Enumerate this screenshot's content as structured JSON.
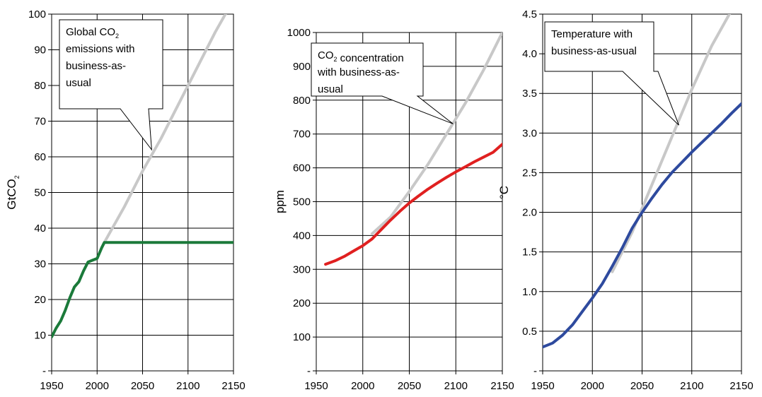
{
  "chart_data": [
    {
      "type": "line",
      "ylabel": "GtCO2",
      "ylabel_main": "GtCO",
      "ylabel_sub": "2",
      "xlim": [
        1950,
        2150
      ],
      "ylim": [
        0,
        100
      ],
      "x_ticks": [
        "1950",
        "2000",
        "2050",
        "2100",
        "2150"
      ],
      "y_ticks": [
        "-",
        "10",
        "20",
        "30",
        "40",
        "50",
        "60",
        "70",
        "80",
        "90",
        "100"
      ],
      "grid": true,
      "annotation": {
        "lines": [
          [
            {
              "t": "Global CO"
            },
            {
              "t": "2",
              "sub": true
            }
          ],
          [
            {
              "t": "emissions with"
            }
          ],
          [
            {
              "t": "business-as-"
            }
          ],
          [
            {
              "t": "usual"
            }
          ]
        ],
        "pointer_to": [
          2060,
          62
        ]
      },
      "series": [
        {
          "color": "#c8c8c8",
          "x": [
            2008,
            2030,
            2050,
            2070,
            2090,
            2110,
            2130,
            2150
          ],
          "y": [
            36,
            46,
            56,
            65,
            75,
            85,
            95,
            104
          ]
        },
        {
          "color": "#1b7a3a",
          "x": [
            1950,
            1955,
            1960,
            1965,
            1970,
            1975,
            1980,
            1985,
            1990,
            1995,
            2000,
            2005,
            2008,
            2010,
            2030,
            2050,
            2070,
            2090,
            2110,
            2130,
            2150
          ],
          "y": [
            9.5,
            12,
            14,
            17,
            20.5,
            23.5,
            25,
            28,
            30.5,
            31,
            31.5,
            34.5,
            36,
            36,
            36,
            36,
            36,
            36,
            36,
            36,
            36
          ]
        }
      ]
    },
    {
      "type": "line",
      "ylabel": "ppm",
      "ylabel_main": "ppm",
      "ylabel_sub": "",
      "xlim": [
        1950,
        2150
      ],
      "ylim": [
        0,
        1000
      ],
      "x_ticks": [
        "1950",
        "2000",
        "2050",
        "2100",
        "2150"
      ],
      "y_ticks": [
        "-",
        "100",
        "200",
        "300",
        "400",
        "500",
        "600",
        "700",
        "800",
        "900",
        "1000"
      ],
      "grid": true,
      "annotation": {
        "lines": [
          [
            {
              "t": "CO"
            },
            {
              "t": "2",
              "sub": true
            },
            {
              "t": " concentration"
            }
          ],
          [
            {
              "t": "with business-as-"
            }
          ],
          [
            {
              "t": "usual"
            }
          ]
        ],
        "pointer_to": [
          2097,
          730
        ]
      },
      "series": [
        {
          "color": "#c8c8c8",
          "x": [
            2010,
            2030,
            2050,
            2070,
            2090,
            2110,
            2130,
            2150
          ],
          "y": [
            405,
            455,
            530,
            610,
            700,
            790,
            890,
            1000
          ]
        },
        {
          "color": "#e02020",
          "x": [
            1960,
            1970,
            1980,
            1990,
            2000,
            2010,
            2020,
            2030,
            2040,
            2050,
            2060,
            2070,
            2080,
            2090,
            2100,
            2110,
            2120,
            2130,
            2140,
            2150
          ],
          "y": [
            315,
            325,
            338,
            354,
            370,
            390,
            418,
            446,
            472,
            496,
            517,
            537,
            555,
            572,
            588,
            603,
            618,
            632,
            646,
            670
          ]
        }
      ]
    },
    {
      "type": "line",
      "ylabel": "°C",
      "ylabel_main": "°C",
      "ylabel_sub": "",
      "xlim": [
        1950,
        2150
      ],
      "ylim": [
        0,
        4.5
      ],
      "x_ticks": [
        "1950",
        "2000",
        "2050",
        "2100",
        "2150"
      ],
      "y_ticks": [
        "-",
        "0.5",
        "1.0",
        "1.5",
        "2.0",
        "2.5",
        "3.0",
        "3.5",
        "4.0",
        "4.5"
      ],
      "grid": true,
      "annotation": {
        "lines": [
          [
            {
              "t": "Temperature with"
            }
          ],
          [
            {
              "t": "business-as-usual"
            }
          ]
        ],
        "pointer_to": [
          2087,
          3.1
        ]
      },
      "series": [
        {
          "color": "#c8c8c8",
          "x": [
            2020,
            2040,
            2060,
            2080,
            2100,
            2120,
            2140,
            2150
          ],
          "y": [
            1.25,
            1.75,
            2.35,
            2.95,
            3.55,
            4.1,
            4.55,
            4.75
          ]
        },
        {
          "color": "#2e4a9e",
          "x": [
            1950,
            1960,
            1970,
            1980,
            1990,
            2000,
            2010,
            2020,
            2030,
            2040,
            2050,
            2060,
            2070,
            2080,
            2090,
            2100,
            2110,
            2120,
            2130,
            2140,
            2150
          ],
          "y": [
            0.3,
            0.35,
            0.45,
            0.58,
            0.75,
            0.92,
            1.1,
            1.32,
            1.55,
            1.8,
            2.0,
            2.18,
            2.35,
            2.5,
            2.63,
            2.76,
            2.88,
            3.0,
            3.12,
            3.25,
            3.37
          ]
        }
      ]
    }
  ]
}
